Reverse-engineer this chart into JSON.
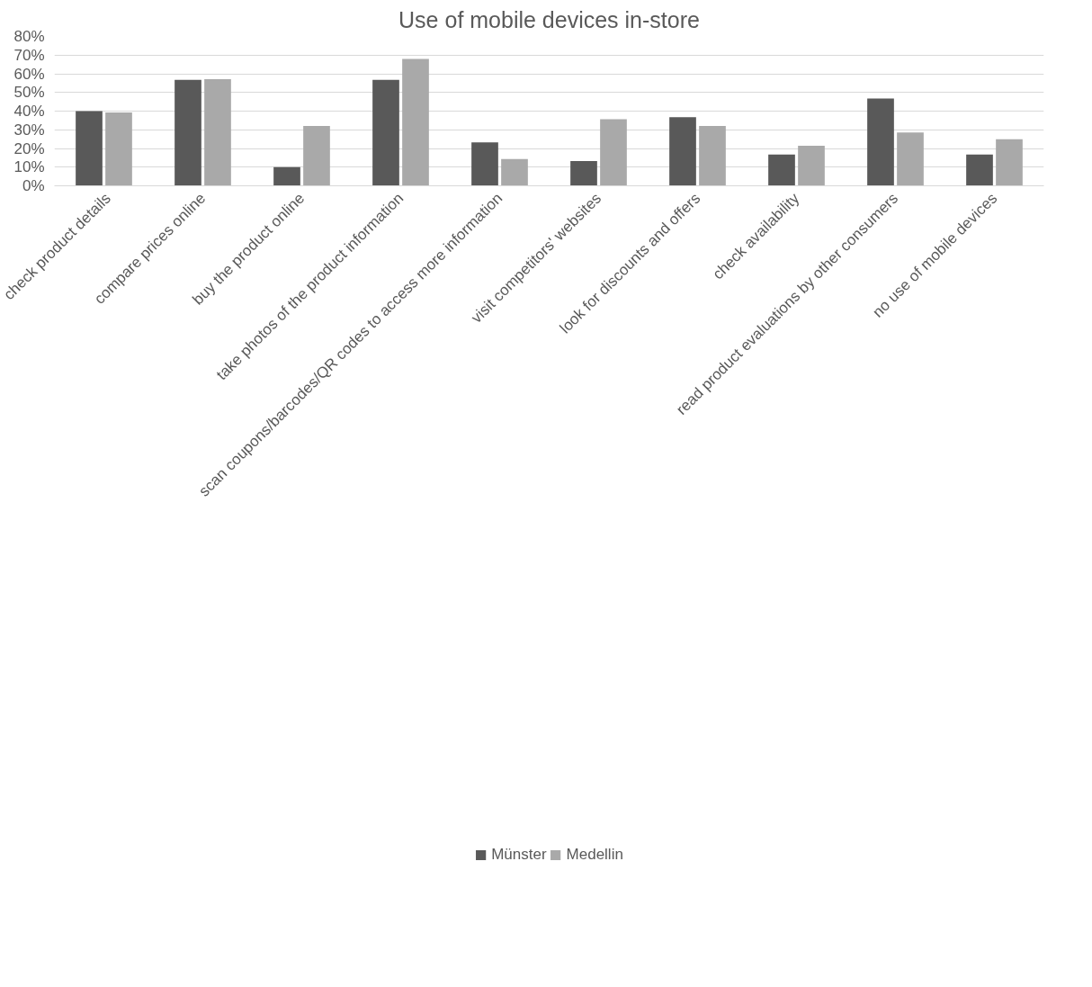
{
  "chart_data": {
    "type": "bar",
    "title": "Use of mobile devices in-store",
    "categories": [
      "check product details",
      "compare prices online",
      "buy the product online",
      "take photos of the product information",
      "scan coupons/barcodes/QR codes to access more information",
      "visit competitors' websites",
      "look for discounts and offers",
      "check availability",
      "read product evaluations by other consumers",
      "no use of mobile devices"
    ],
    "series": [
      {
        "name": "Münster",
        "color": "#595959",
        "values": [
          40.0,
          56.7,
          10.0,
          56.7,
          23.3,
          13.3,
          36.7,
          16.7,
          46.7,
          16.7
        ]
      },
      {
        "name": "Medellin",
        "color": "#a9a9a9",
        "values": [
          39.3,
          57.1,
          32.1,
          67.9,
          14.3,
          35.7,
          32.1,
          21.4,
          28.6,
          25.0
        ]
      }
    ],
    "ylim": [
      0,
      80
    ],
    "yticks": [
      {
        "value": 0,
        "label": "0%"
      },
      {
        "value": 10,
        "label": "10%"
      },
      {
        "value": 20,
        "label": "20%"
      },
      {
        "value": 30,
        "label": "30%"
      },
      {
        "value": 40,
        "label": "40%"
      },
      {
        "value": 50,
        "label": "50%"
      },
      {
        "value": 60,
        "label": "60%"
      },
      {
        "value": 70,
        "label": "70%"
      },
      {
        "value": 80,
        "label": "80%"
      }
    ],
    "grid": "y",
    "legend": "bottom"
  }
}
